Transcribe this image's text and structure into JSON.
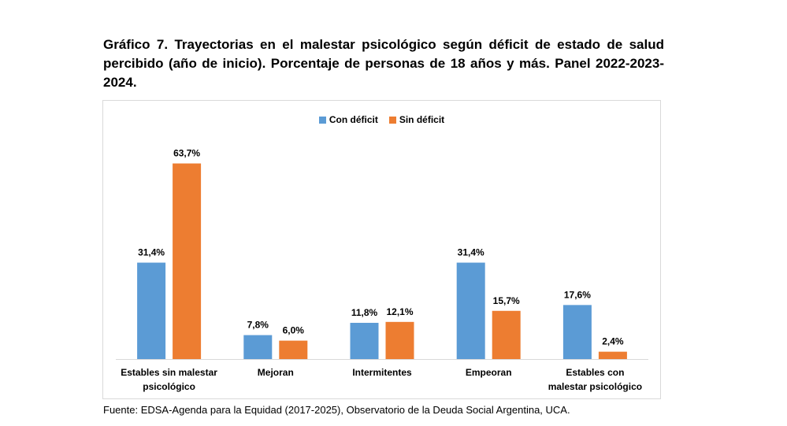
{
  "title": "Gráfico 7. Trayectorias en el malestar psicológico según déficit de estado de salud percibido (año de inicio). Porcentaje de personas de 18 años y más. Panel 2022-2023-2024.",
  "source": "Fuente: EDSA-Agenda para la Equidad (2017-2025), Observatorio de la Deuda Social Argentina, UCA.",
  "colors": {
    "con_deficit": "#5b9bd5",
    "sin_deficit": "#ed7d31",
    "axis": "#d9d9d9"
  },
  "chart_data": {
    "type": "bar",
    "title": "",
    "xlabel": "",
    "ylabel": "",
    "ylim": [
      0,
      70
    ],
    "grid": false,
    "legend_position": "top-center",
    "categories": [
      [
        "Estables sin malestar",
        "psicológico"
      ],
      [
        "Mejoran"
      ],
      [
        "Intermitentes"
      ],
      [
        "Empeoran"
      ],
      [
        "Estables con",
        "malestar psicológico"
      ]
    ],
    "series": [
      {
        "name": "Con déficit",
        "values": [
          31.4,
          7.8,
          11.8,
          31.4,
          17.6
        ],
        "labels": [
          "31,4%",
          "7,8%",
          "11,8%",
          "31,4%",
          "17,6%"
        ]
      },
      {
        "name": "Sin déficit",
        "values": [
          63.7,
          6.0,
          12.1,
          15.7,
          2.4
        ],
        "labels": [
          "63,7%",
          "6,0%",
          "12,1%",
          "15,7%",
          "2,4%"
        ]
      }
    ]
  }
}
